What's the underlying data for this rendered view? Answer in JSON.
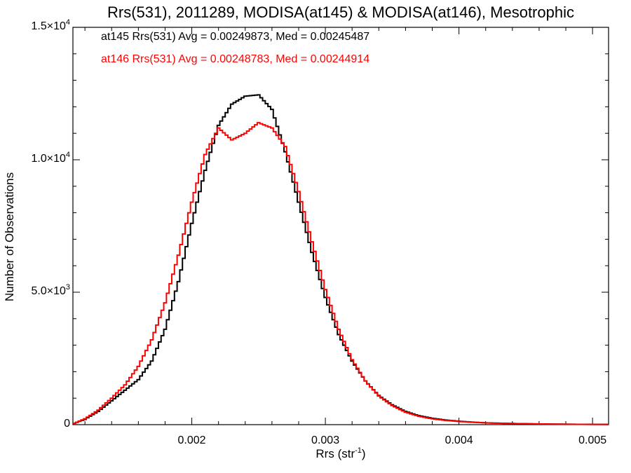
{
  "chart_data": {
    "type": "line",
    "step": true,
    "title": "Rrs(531), 2011289, MODISA(at145) & MODISA(at146), Mesotrophic",
    "xlabel": {
      "base": "Rrs (str",
      "sup": "-1",
      "tail": ")"
    },
    "ylabel": "Number of Observations",
    "xlim": [
      0.00111,
      0.00512
    ],
    "ylim": [
      0,
      15000
    ],
    "grid": false,
    "x_ticks": [
      {
        "value": 0.002,
        "label": "0.002"
      },
      {
        "value": 0.003,
        "label": "0.003"
      },
      {
        "value": 0.004,
        "label": "0.004"
      },
      {
        "value": 0.005,
        "label": "0.005"
      }
    ],
    "y_ticks": [
      {
        "value": 0,
        "mant": "0",
        "exp": ""
      },
      {
        "value": 5000,
        "mant": "5.0×10",
        "exp": "3"
      },
      {
        "value": 10000,
        "mant": "1.0×10",
        "exp": "4"
      },
      {
        "value": 15000,
        "mant": "1.5×10",
        "exp": "4"
      }
    ],
    "annotations": [
      "at145 Rrs(531) Avg = 0.00249873, Med = 0.00245487",
      "at146 Rrs(531) Avg = 0.00248783, Med = 0.00244914"
    ],
    "series": [
      {
        "color": "#000000",
        "points": [
          [
            0.00111,
            30
          ],
          [
            0.0012,
            200
          ],
          [
            0.0013,
            500
          ],
          [
            0.0014,
            900
          ],
          [
            0.0015,
            1300
          ],
          [
            0.0016,
            1700
          ],
          [
            0.0017,
            2400
          ],
          [
            0.0018,
            3600
          ],
          [
            0.0019,
            5400
          ],
          [
            0.002,
            7600
          ],
          [
            0.0021,
            9600
          ],
          [
            0.0022,
            11300
          ],
          [
            0.0023,
            12100
          ],
          [
            0.0024,
            12400
          ],
          [
            0.0025,
            12450
          ],
          [
            0.0026,
            11900
          ],
          [
            0.0027,
            10300
          ],
          [
            0.0028,
            8400
          ],
          [
            0.0029,
            6500
          ],
          [
            0.003,
            4800
          ],
          [
            0.0031,
            3400
          ],
          [
            0.0032,
            2400
          ],
          [
            0.0033,
            1650
          ],
          [
            0.0034,
            1100
          ],
          [
            0.0035,
            750
          ],
          [
            0.0036,
            500
          ],
          [
            0.0037,
            340
          ],
          [
            0.0038,
            240
          ],
          [
            0.0039,
            175
          ],
          [
            0.004,
            130
          ],
          [
            0.0041,
            95
          ],
          [
            0.0042,
            70
          ],
          [
            0.0043,
            55
          ],
          [
            0.0044,
            45
          ],
          [
            0.0045,
            35
          ],
          [
            0.0046,
            28
          ],
          [
            0.0047,
            22
          ],
          [
            0.0048,
            18
          ],
          [
            0.0049,
            14
          ],
          [
            0.005,
            11
          ],
          [
            0.00512,
            8
          ]
        ]
      },
      {
        "color": "#ff0000",
        "points": [
          [
            0.00111,
            30
          ],
          [
            0.0012,
            220
          ],
          [
            0.0013,
            550
          ],
          [
            0.0014,
            1000
          ],
          [
            0.0015,
            1500
          ],
          [
            0.0016,
            2200
          ],
          [
            0.0017,
            3200
          ],
          [
            0.0018,
            4600
          ],
          [
            0.0019,
            6400
          ],
          [
            0.002,
            8400
          ],
          [
            0.0021,
            10200
          ],
          [
            0.0022,
            11200
          ],
          [
            0.0023,
            10750
          ],
          [
            0.0024,
            11000
          ],
          [
            0.0025,
            11400
          ],
          [
            0.0026,
            11200
          ],
          [
            0.0027,
            10500
          ],
          [
            0.0028,
            8800
          ],
          [
            0.0029,
            6900
          ],
          [
            0.003,
            5100
          ],
          [
            0.0031,
            3600
          ],
          [
            0.0032,
            2450
          ],
          [
            0.0033,
            1650
          ],
          [
            0.0034,
            1080
          ],
          [
            0.0035,
            720
          ],
          [
            0.0036,
            470
          ],
          [
            0.0037,
            315
          ],
          [
            0.0038,
            220
          ],
          [
            0.0039,
            160
          ],
          [
            0.004,
            120
          ],
          [
            0.0041,
            90
          ],
          [
            0.0042,
            65
          ],
          [
            0.0043,
            52
          ],
          [
            0.0044,
            42
          ],
          [
            0.0045,
            33
          ],
          [
            0.0046,
            26
          ],
          [
            0.0047,
            20
          ],
          [
            0.0048,
            16
          ],
          [
            0.0049,
            13
          ],
          [
            0.005,
            10
          ],
          [
            0.00512,
            7
          ]
        ]
      }
    ]
  }
}
